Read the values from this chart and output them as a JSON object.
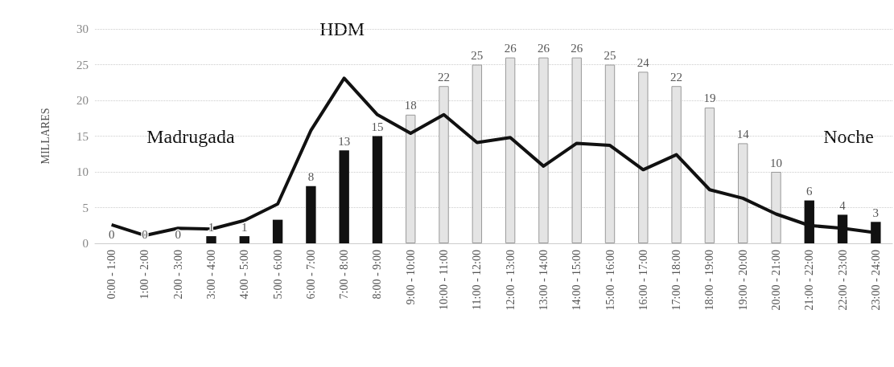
{
  "chart_data": {
    "type": "bar",
    "ylabel": "MILLARES",
    "categories": [
      "0:00 - 1:00",
      "1:00 - 2:00",
      "2:00 - 3:00",
      "3:00 - 4:00",
      "4:00 - 5:00",
      "5:00 - 6:00",
      "6:00 - 7:00",
      "7:00 - 8:00",
      "8:00 - 9:00",
      "9:00 - 10:00",
      "10:00 - 11:00",
      "11:00 - 12:00",
      "12:00 - 13:00",
      "13:00 - 14:00",
      "14:00 - 15:00",
      "15:00 - 16:00",
      "16:00 - 17:00",
      "17:00 - 18:00",
      "18:00 - 19:00",
      "19:00 - 20:00",
      "20:00 - 21:00",
      "21:00 - 22:00",
      "22:00 - 23:00",
      "23:00 - 24:00"
    ],
    "series": [
      {
        "values": [
          0,
          0,
          0,
          1,
          1,
          3.3,
          8,
          13,
          15,
          18,
          22,
          25,
          26,
          26,
          26,
          25,
          24,
          22,
          19,
          14,
          10,
          6,
          4,
          3
        ],
        "value_labels": [
          "0",
          "0",
          "0",
          "1",
          "1",
          null,
          "8",
          "13",
          "15",
          "18",
          "22",
          "25",
          "26",
          "26",
          "26",
          "25",
          "24",
          "22",
          "19",
          "14",
          "10",
          "6",
          "4",
          "3"
        ],
        "colors": [
          "#111111",
          "#111111",
          "#111111",
          "#111111",
          "#111111",
          "#111111",
          "#111111",
          "#111111",
          "#111111",
          "#e4e4e4",
          "#e4e4e4",
          "#e4e4e4",
          "#e4e4e4",
          "#e4e4e4",
          "#e4e4e4",
          "#e4e4e4",
          "#e4e4e4",
          "#e4e4e4",
          "#e4e4e4",
          "#e4e4e4",
          "#e4e4e4",
          "#111111",
          "#111111",
          "#111111"
        ]
      },
      {
        "type": "line",
        "color": "#111111",
        "values": [
          2.6,
          1.1,
          2.1,
          2.0,
          3.2,
          5.5,
          15.8,
          23.1,
          18.0,
          15.4,
          18.0,
          14.1,
          14.8,
          10.8,
          14.0,
          13.7,
          10.3,
          12.4,
          7.5,
          6.3,
          4.1,
          2.5,
          2.1,
          1.5
        ]
      }
    ],
    "ylim": [
      0,
      30
    ],
    "yticks": [
      0,
      5,
      10,
      15,
      20,
      25,
      30
    ],
    "grid": "y",
    "marker": "none",
    "line_style": "solid",
    "annotations": [
      "Madrugada",
      "HDM",
      "Noche"
    ]
  }
}
